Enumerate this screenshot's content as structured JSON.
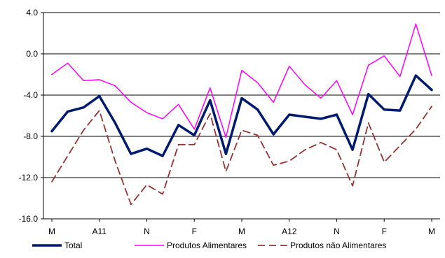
{
  "chart_data": {
    "type": "line",
    "title": "",
    "xlabel": "",
    "ylabel": "",
    "ylim": [
      -16.0,
      4.0
    ],
    "yticks": [
      -16.0,
      -12.0,
      -8.0,
      -4.0,
      0.0,
      4.0
    ],
    "ytick_labels": [
      "-16.0",
      "-12.0",
      "-8.0",
      "-4.0",
      "0.0",
      "4.0"
    ],
    "grid": "horizontal",
    "legend_position": "bottom",
    "category_labels": [
      "M",
      "A11",
      "N",
      "F",
      "M",
      "A12",
      "N",
      "F",
      "M"
    ],
    "label_every": 3,
    "series": [
      {
        "name": "Total",
        "color": "#001a6e",
        "style": "solid-thick",
        "values": [
          -7.5,
          -5.6,
          -5.2,
          -4.1,
          -6.7,
          -9.7,
          -9.2,
          -9.9,
          -6.9,
          -7.9,
          -4.5,
          -9.7,
          -4.3,
          -5.4,
          -7.8,
          -5.9,
          -6.1,
          -6.3,
          -5.9,
          -9.3,
          -3.9,
          -5.4,
          -5.5,
          -2.1,
          -3.5
        ]
      },
      {
        "name": "Produtos Alimentares",
        "color": "#ff00ff",
        "style": "solid",
        "values": [
          -2.0,
          -0.9,
          -2.6,
          -2.5,
          -3.1,
          -4.7,
          -5.7,
          -6.3,
          -4.9,
          -7.3,
          -3.3,
          -8.1,
          -1.6,
          -2.8,
          -4.7,
          -1.2,
          -3.0,
          -4.3,
          -2.6,
          -5.9,
          -1.1,
          -0.2,
          -2.2,
          2.9,
          -2.1
        ]
      },
      {
        "name": "Produtos não Alimentares",
        "color": "#993333",
        "style": "dashed",
        "values": [
          -12.4,
          -9.9,
          -7.4,
          -5.5,
          -10.4,
          -14.6,
          -12.7,
          -13.6,
          -8.8,
          -8.8,
          -5.8,
          -11.4,
          -7.4,
          -7.9,
          -10.8,
          -10.4,
          -9.3,
          -8.6,
          -9.3,
          -12.8,
          -6.7,
          -10.5,
          -8.9,
          -7.3,
          -5.1
        ]
      }
    ]
  }
}
